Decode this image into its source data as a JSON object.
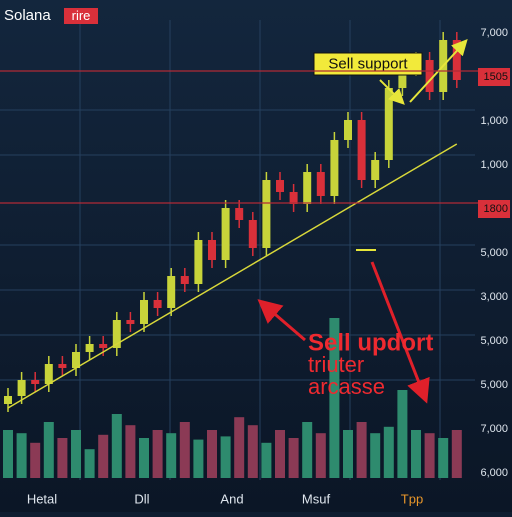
{
  "chart_data": {
    "type": "candlestick",
    "title": "Solana",
    "title_badge": "rire",
    "callout": "Sell support",
    "annotation_lines": [
      "Sell updort",
      "triuter",
      "arcasse"
    ],
    "x_labels": [
      "Hetal",
      "Dll",
      "And",
      "Msuf",
      "Tpp"
    ],
    "axis_labels": [
      {
        "text": "7,000",
        "highlight": false
      },
      {
        "text": "1505",
        "highlight": true
      },
      {
        "text": "1,000",
        "highlight": false
      },
      {
        "text": "1,000",
        "highlight": false
      },
      {
        "text": "1800",
        "highlight": true
      },
      {
        "text": "5,000",
        "highlight": false
      },
      {
        "text": "3,000",
        "highlight": false
      },
      {
        "text": "5,000",
        "highlight": false
      },
      {
        "text": "5,000",
        "highlight": false
      },
      {
        "text": "7,000",
        "highlight": false
      },
      {
        "text": "6,000",
        "highlight": false
      }
    ],
    "ylim": [
      0,
      100
    ],
    "up_color": "#c8d43a",
    "down_color": "#d9303a",
    "open": [
      4,
      6,
      10,
      9,
      14,
      13,
      17,
      19,
      18,
      25,
      24,
      30,
      28,
      36,
      34,
      45,
      40,
      53,
      50,
      43,
      60,
      57,
      54,
      62,
      56,
      70,
      75,
      60,
      65,
      83,
      88,
      90,
      82,
      95
    ],
    "high": [
      8,
      12,
      12,
      16,
      16,
      19,
      21,
      21,
      27,
      27,
      32,
      32,
      38,
      38,
      47,
      47,
      55,
      55,
      52,
      62,
      62,
      59,
      64,
      64,
      72,
      77,
      77,
      67,
      85,
      90,
      92,
      92,
      97,
      97
    ],
    "low": [
      2,
      4,
      7,
      7,
      11,
      11,
      15,
      16,
      16,
      22,
      22,
      26,
      26,
      32,
      32,
      38,
      38,
      48,
      41,
      41,
      55,
      52,
      52,
      54,
      54,
      68,
      58,
      58,
      63,
      81,
      86,
      80,
      80,
      83
    ],
    "close": [
      6,
      10,
      9,
      14,
      13,
      17,
      19,
      18,
      25,
      24,
      30,
      28,
      36,
      34,
      45,
      40,
      53,
      50,
      43,
      60,
      57,
      54,
      62,
      56,
      70,
      75,
      60,
      65,
      83,
      88,
      90,
      82,
      95,
      85
    ],
    "trend": {
      "color": "#d8d83a",
      "values": [
        3,
        5,
        7,
        9,
        11,
        13,
        15,
        17,
        19,
        21,
        23,
        25,
        27,
        29,
        31,
        33,
        35,
        37,
        39,
        41,
        43,
        45,
        47,
        49,
        51,
        53,
        55,
        57,
        59,
        61,
        63,
        65,
        67,
        69
      ]
    },
    "volume": {
      "ylim": [
        0,
        100
      ],
      "up_color": "#2e8b6e",
      "down_color": "#8b3a55",
      "values": [
        30,
        28,
        22,
        35,
        25,
        30,
        18,
        27,
        40,
        33,
        25,
        30,
        28,
        35,
        24,
        30,
        26,
        38,
        33,
        22,
        30,
        25,
        35,
        28,
        100,
        30,
        35,
        28,
        32,
        55,
        30,
        28,
        25,
        30
      ]
    }
  }
}
